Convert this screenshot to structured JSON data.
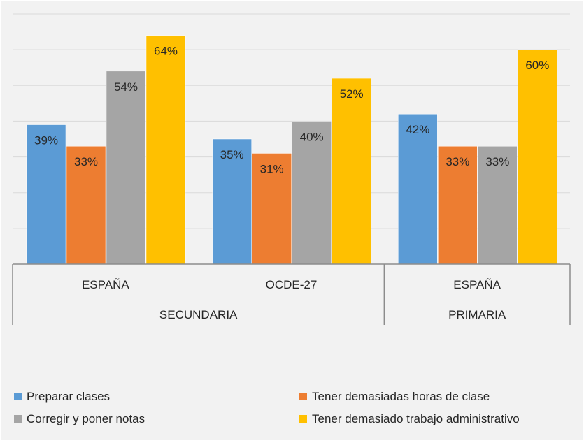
{
  "chart_data": {
    "type": "bar",
    "title": "",
    "xlabel": "",
    "ylabel": "",
    "ylim": [
      0,
      70
    ],
    "grid": true,
    "legend_position": "bottom",
    "groups": [
      {
        "label": "SECUNDARIA",
        "categories": [
          "ESPAÑA",
          "OCDE-27"
        ]
      },
      {
        "label": "PRIMARIA",
        "categories": [
          "ESPAÑA"
        ]
      }
    ],
    "categories": [
      "ESPAÑA",
      "OCDE-27",
      "ESPAÑA"
    ],
    "series": [
      {
        "name": "Preparar clases",
        "color": "#5b9bd5",
        "values": [
          39,
          35,
          42
        ],
        "labels": [
          "39%",
          "35%",
          "42%"
        ]
      },
      {
        "name": "Tener demasiadas horas de clase",
        "color": "#ed7d31",
        "values": [
          33,
          31,
          33
        ],
        "labels": [
          "33%",
          "31%",
          "33%"
        ]
      },
      {
        "name": "Corregir y poner notas",
        "color": "#a5a5a5",
        "values": [
          54,
          40,
          33
        ],
        "labels": [
          "54%",
          "40%",
          "33%"
        ]
      },
      {
        "name": "Tener demasiado trabajo administrativo",
        "color": "#ffc000",
        "values": [
          64,
          52,
          60
        ],
        "labels": [
          "64%",
          "52%",
          "60%"
        ]
      }
    ]
  }
}
